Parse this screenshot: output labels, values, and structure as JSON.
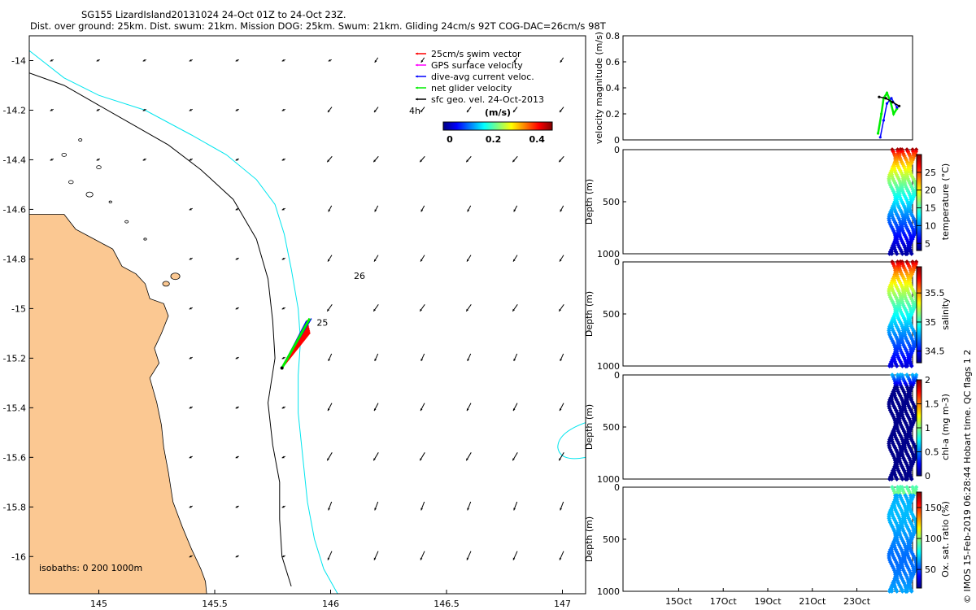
{
  "title_line1": "SG155 LizardIsland20131024 24-Oct 01Z to 24-Oct 23Z.",
  "title_line2": "Dist. over ground: 25km. Dist. swum: 21km. Mission DOG: 25km. Swum: 21km. Gliding 24cm/s 92T COG-DAC=26cm/s 98T",
  "watermark": "© IMOS 15-Feb-2019 06:28:44 Hobart time. QC flags 1  2",
  "colors": {
    "land": "#fbc892",
    "coast_isobath": "#000000",
    "shelf_isobath": "#00e5ee",
    "swim_vector": "#ff0000",
    "gps_velocity": "#ff00ff",
    "dac": "#0000ff",
    "net_velocity": "#00ee00",
    "geo_velocity": "#000000"
  },
  "chart_data": [
    {
      "type": "map",
      "name": "glider-track-map",
      "xlim": [
        144.7,
        147.1
      ],
      "ylim": [
        -16.15,
        -13.9
      ],
      "xticks": [
        "145",
        "145.5",
        "146",
        "146.5",
        "147"
      ],
      "xtick_values": [
        145,
        145.5,
        146,
        146.5,
        147
      ],
      "yticks": [
        "-14",
        "-14.2",
        "-14.4",
        "-14.6",
        "-14.8",
        "-15",
        "-15.2",
        "-15.4",
        "-15.6",
        "-15.8",
        "-16"
      ],
      "ytick_values": [
        -14,
        -14.2,
        -14.4,
        -14.6,
        -14.8,
        -15,
        -15.2,
        -15.4,
        -15.6,
        -15.8,
        -16
      ],
      "legend": {
        "position": "top-right",
        "entries": [
          {
            "label": "25cm/s swim vector",
            "color": "#ff0000"
          },
          {
            "label": "GPS surface velocity",
            "color": "#ff00ff"
          },
          {
            "label": "dive-avg current veloc.",
            "color": "#0000ff"
          },
          {
            "label": "net glider velocity",
            "color": "#00ee00"
          },
          {
            "label": "sfc geo. vel. 24-Oct-2013",
            "color": "#000000"
          }
        ],
        "time_label": "4h"
      },
      "colorbar": {
        "label": "(m/s)",
        "ticks": [
          "0",
          "0.2",
          "0.4"
        ],
        "tick_values": [
          0,
          0.2,
          0.4
        ],
        "range": [
          0,
          0.5
        ]
      },
      "annotations": [
        {
          "text": "26",
          "lon": 146.1,
          "lat": -14.88
        },
        {
          "text": "25",
          "lon": 145.94,
          "lat": -15.07
        }
      ],
      "isobath_label": "isobaths: 0   200  1000m",
      "glider_track": {
        "start": [
          145.79,
          -15.24
        ],
        "end": [
          145.91,
          -15.04
        ]
      },
      "geo_velocity_grid": {
        "lons": [
          144.8,
          145.0,
          145.2,
          145.4,
          145.6,
          145.8,
          146.0,
          146.2,
          146.4,
          146.6,
          146.8,
          147.0
        ],
        "lats": [
          -14.0,
          -14.2,
          -14.4,
          -14.6,
          -14.8,
          -15.0,
          -15.2,
          -15.4,
          -15.6,
          -15.8,
          -16.0
        ]
      }
    },
    {
      "type": "line",
      "name": "velocity-magnitude",
      "ylabel": "velocity magnitude (m/s)",
      "ylim": [
        0,
        0.8
      ],
      "yticks": [
        "0",
        "0.2",
        "0.4",
        "0.6",
        "0.8"
      ],
      "ytick_values": [
        0,
        0.2,
        0.4,
        0.6,
        0.8
      ],
      "xlim_days": [
        12.5,
        25.5
      ],
      "series": [
        {
          "name": "net glider velocity",
          "color": "#00ee00",
          "x": [
            23.95,
            24.1,
            24.2,
            24.35,
            24.5,
            24.65,
            24.8
          ],
          "y": [
            0.05,
            0.2,
            0.32,
            0.36,
            0.3,
            0.2,
            0.24
          ]
        },
        {
          "name": "dive-avg current",
          "color": "#0000ff",
          "x": [
            24.05,
            24.2,
            24.35,
            24.55,
            24.8
          ],
          "y": [
            0.02,
            0.15,
            0.28,
            0.32,
            0.25
          ]
        },
        {
          "name": "surface geo velocity",
          "color": "#000000",
          "x": [
            24.0,
            24.3,
            24.6,
            24.9
          ],
          "y": [
            0.33,
            0.32,
            0.29,
            0.26
          ]
        }
      ]
    },
    {
      "type": "scatter",
      "name": "temperature-section",
      "ylabel": "Depth (m)",
      "yticks": [
        "0",
        "500",
        "1000"
      ],
      "ytick_values": [
        0,
        500,
        1000
      ],
      "colorbar_label": "temperature (°C)",
      "colorbar_ticks": [
        "5",
        "10",
        "15",
        "20",
        "25"
      ],
      "colorbar_tick_values": [
        5,
        10,
        15,
        20,
        25
      ],
      "crange": [
        3,
        30
      ],
      "surface_value": 29,
      "deep_value": 4,
      "profiles": 9,
      "max_depth": 1000
    },
    {
      "type": "scatter",
      "name": "salinity-section",
      "ylabel": "Depth (m)",
      "yticks": [
        "0",
        "500",
        "1000"
      ],
      "ytick_values": [
        0,
        500,
        1000
      ],
      "colorbar_label": "salinity",
      "colorbar_ticks": [
        "34.5",
        "35",
        "35.5"
      ],
      "colorbar_tick_values": [
        34.5,
        35,
        35.5
      ],
      "crange": [
        34.3,
        35.95
      ],
      "surface_value": 35.9,
      "deep_value": 34.45,
      "profiles": 9,
      "max_depth": 1000
    },
    {
      "type": "scatter",
      "name": "chlorophyll-section",
      "ylabel": "Depth (m)",
      "yticks": [
        "0",
        "500",
        "1000"
      ],
      "ytick_values": [
        0,
        500,
        1000
      ],
      "colorbar_label": "chl-a (mg m-3)",
      "colorbar_ticks": [
        "0",
        "0.5",
        "1",
        "1.5",
        "2"
      ],
      "colorbar_tick_values": [
        0,
        0.5,
        1,
        1.5,
        2
      ],
      "crange": [
        0,
        2
      ],
      "surface_value": 0.6,
      "deep_value": 0.02,
      "profiles": 9,
      "max_depth": 1000
    },
    {
      "type": "scatter",
      "name": "oxygen-section",
      "ylabel": "Depth (m)",
      "yticks": [
        "0",
        "500",
        "1000"
      ],
      "ytick_values": [
        0,
        500,
        1000
      ],
      "colorbar_label": "Ox. sat. ratio (%)",
      "colorbar_ticks": [
        "50",
        "100",
        "150"
      ],
      "colorbar_tick_values": [
        50,
        100,
        150
      ],
      "crange": [
        20,
        175
      ],
      "surface_value": 100,
      "deep_value": 62,
      "profiles": 9,
      "max_depth": 1000,
      "xticks": [
        "15Oct",
        "17Oct",
        "19Oct",
        "21Oct",
        "23Oct"
      ],
      "xtick_values": [
        15,
        17,
        19,
        21,
        23
      ]
    }
  ]
}
